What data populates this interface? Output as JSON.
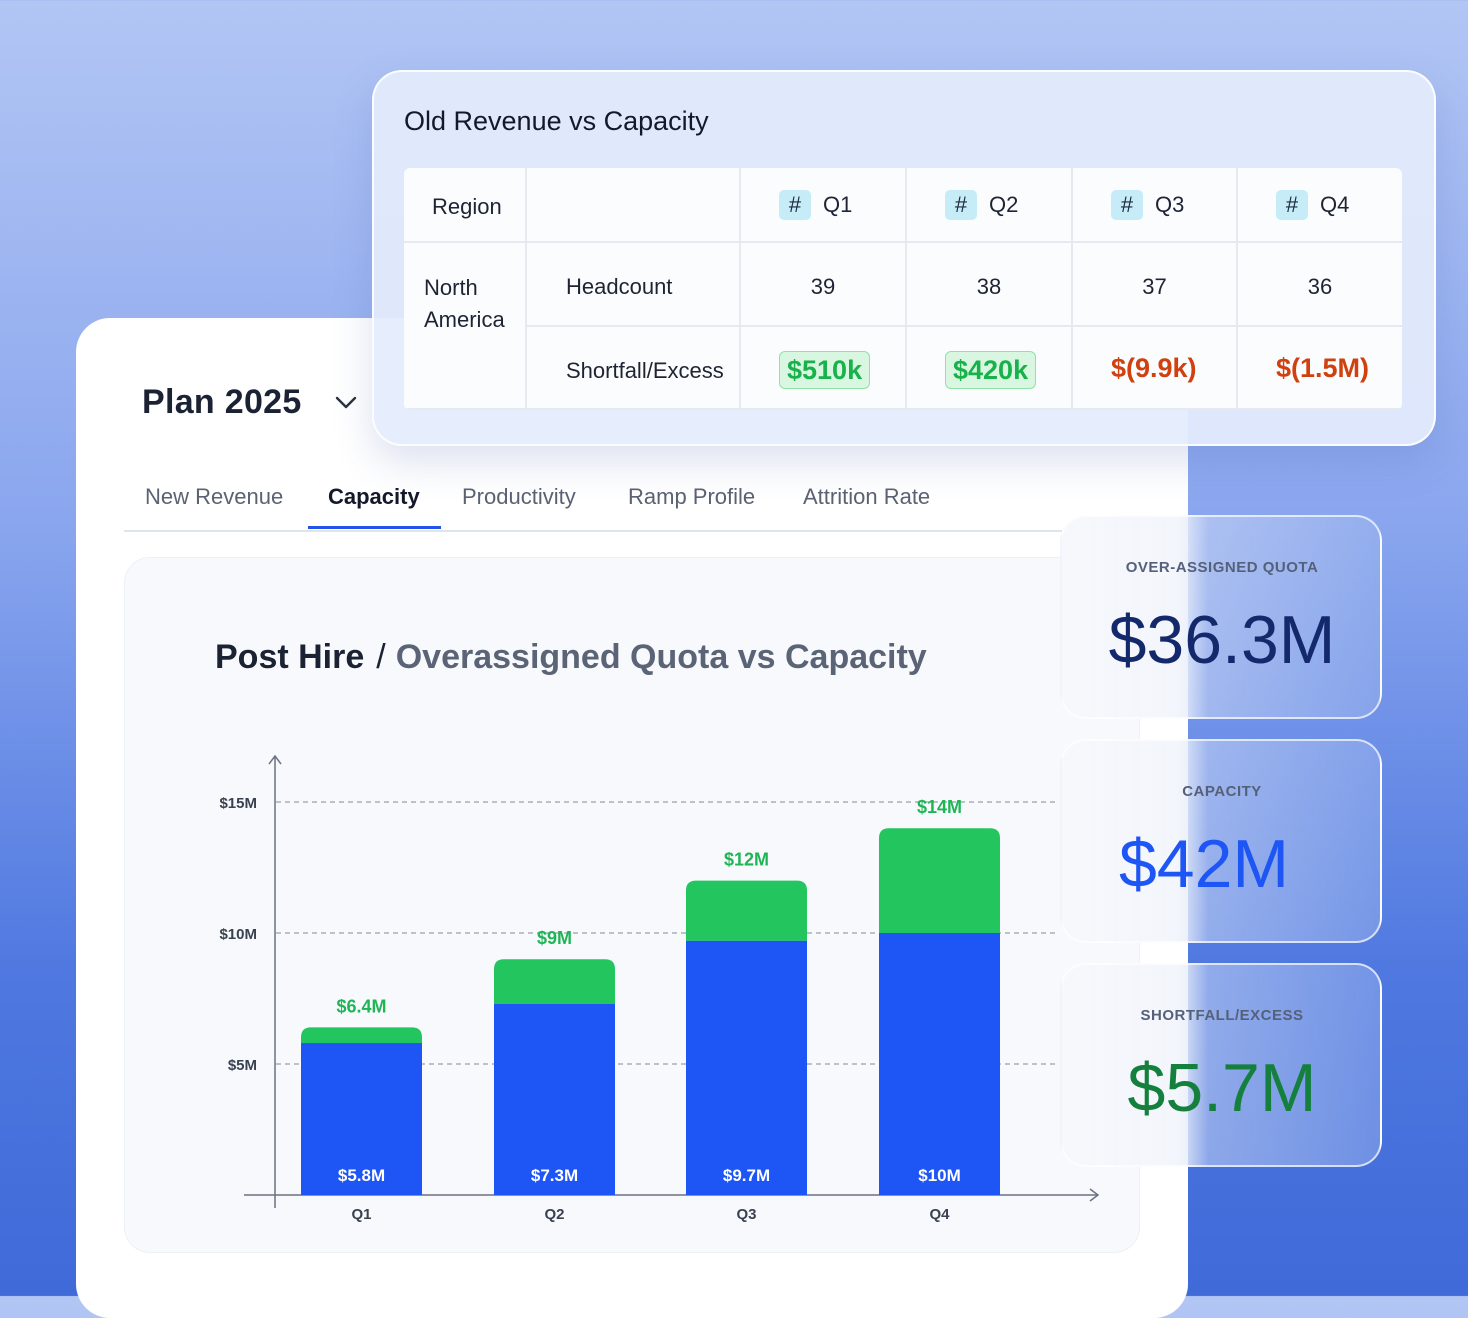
{
  "plan": {
    "title": "Plan 2025"
  },
  "tabs": [
    {
      "label": "New Revenue",
      "active": false
    },
    {
      "label": "Capacity",
      "active": true
    },
    {
      "label": "Productivity",
      "active": false
    },
    {
      "label": "Ramp Profile",
      "active": false
    },
    {
      "label": "Attrition Rate",
      "active": false
    }
  ],
  "chart_heading": {
    "main": "Post Hire",
    "separator": "/",
    "sub": "Overassigned Quota vs Capacity"
  },
  "chart_data": {
    "type": "bar",
    "stacked": true,
    "categories": [
      "Q1",
      "Q2",
      "Q3",
      "Q4"
    ],
    "series": [
      {
        "color": "#1e55f5",
        "values": [
          5.8,
          7.3,
          9.7,
          10
        ],
        "labels": [
          "$5.8M",
          "$7.3M",
          "$9.7M",
          "$10M"
        ]
      },
      {
        "color": "#22c55e",
        "values": [
          0.6,
          1.7,
          2.3,
          4
        ],
        "labels": [
          "$6.4M",
          "$9M",
          "$12M",
          "$14M"
        ]
      }
    ],
    "totals": [
      6.4,
      9,
      12,
      14
    ],
    "yticks": [
      5,
      10,
      15
    ],
    "ytick_labels": [
      "$5M",
      "$10M",
      "$15M"
    ],
    "ylim": [
      0,
      15.5
    ],
    "grid": "dashed",
    "legend": "none"
  },
  "table": {
    "title": "Old Revenue vs Capacity",
    "headers": {
      "region": "Region",
      "quarters": [
        "Q1",
        "Q2",
        "Q3",
        "Q4"
      ],
      "quarter_icon": "#"
    },
    "region": "North America",
    "rows": [
      {
        "label": "Headcount",
        "values": [
          "39",
          "38",
          "37",
          "36"
        ]
      },
      {
        "label": "Shortfall/Excess",
        "values": [
          "$510k",
          "$420k",
          "$(9.9k)",
          "$(1.5M)"
        ],
        "signs": [
          "positive",
          "positive",
          "negative",
          "negative"
        ]
      }
    ]
  },
  "kpis": [
    {
      "label": "OVER-ASSIGNED QUOTA",
      "value": "$36.3M",
      "color": "#13296b"
    },
    {
      "label": "CAPACITY",
      "value": "$42M",
      "color": "#1e55f5"
    },
    {
      "label": "SHORTFALL/EXCESS",
      "value": "$5.7M",
      "color": "#15803d"
    }
  ],
  "colors": {
    "accent": "#2553e6",
    "positive": "#17b24a",
    "negative": "#d0410f"
  }
}
